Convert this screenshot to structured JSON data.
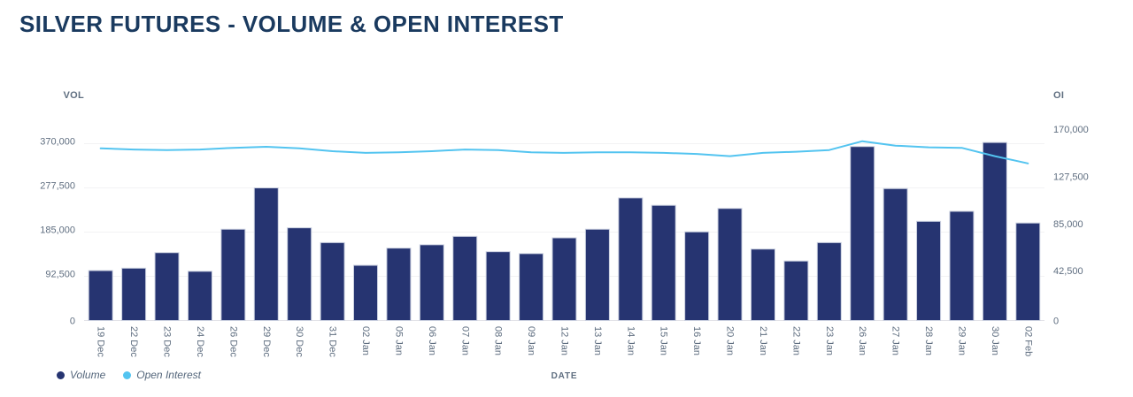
{
  "title": "SILVER FUTURES - VOLUME & OPEN INTEREST",
  "colors": {
    "title": "#1a3a5f",
    "volume_bar": "#263471",
    "volume_bar_border": "#c9cfdf",
    "open_interest_line": "#53c4f0",
    "gridline": "#f2f2f4",
    "axis_line": "#e2e2e8",
    "axis_text": "#5f6e80",
    "legend_text": "#54667b",
    "background": "#ffffff"
  },
  "legend": {
    "items": [
      {
        "label": "Volume",
        "color": "#263471"
      },
      {
        "label": "Open Interest",
        "color": "#53c4f0"
      }
    ]
  },
  "chart_data": {
    "type": "bar",
    "subtype": "bar+line dual-axis combo",
    "title": "SILVER FUTURES - VOLUME & OPEN INTEREST",
    "xlabel": "DATE",
    "grid": "horizontal",
    "legend_position": "bottom-left",
    "categories": [
      "19 Dec",
      "22 Dec",
      "23 Dec",
      "24 Dec",
      "26 Dec",
      "29 Dec",
      "30 Dec",
      "31 Dec",
      "02 Jan",
      "05 Jan",
      "06 Jan",
      "07 Jan",
      "08 Jan",
      "09 Jan",
      "12 Jan",
      "13 Jan",
      "14 Jan",
      "15 Jan",
      "16 Jan",
      "20 Jan",
      "21 Jan",
      "22 Jan",
      "23 Jan",
      "26 Jan",
      "27 Jan",
      "28 Jan",
      "29 Jan",
      "30 Jan",
      "02 Feb"
    ],
    "series": [
      {
        "name": "Volume",
        "type": "bar",
        "axis": "left",
        "color": "#263471",
        "values": [
          104500,
          109500,
          142000,
          103000,
          191000,
          277500,
          194000,
          163000,
          115500,
          151500,
          158500,
          176000,
          144000,
          140000,
          173000,
          191000,
          256500,
          241000,
          185500,
          234500,
          149500,
          124500,
          163000,
          364000,
          276000,
          207500,
          228500,
          372500,
          204000
        ]
      },
      {
        "name": "Open Interest",
        "type": "line",
        "axis": "right",
        "color": "#53c4f0",
        "values": [
          155000,
          154000,
          153500,
          154000,
          155500,
          156500,
          155000,
          152500,
          151000,
          151500,
          152500,
          154000,
          153500,
          151500,
          151000,
          151500,
          151500,
          151000,
          150000,
          148000,
          151000,
          152000,
          153500,
          161500,
          157500,
          156000,
          155500,
          148000,
          141500
        ]
      }
    ],
    "left_axis": {
      "label": "VOL",
      "min": 0,
      "max": 370000,
      "ticks": [
        0,
        92500,
        185000,
        277500,
        370000
      ]
    },
    "right_axis": {
      "label": "OI",
      "min": 0,
      "max": 170000,
      "ticks": [
        0,
        42500,
        85000,
        127500,
        170000
      ]
    }
  }
}
